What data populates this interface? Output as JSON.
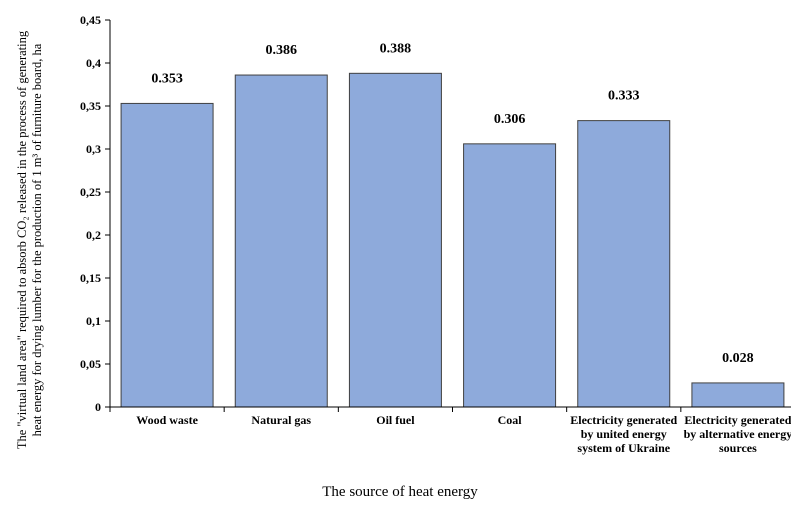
{
  "chart_data": {
    "type": "bar",
    "categories": [
      "Wood waste",
      "Natural gas",
      "Oil fuel",
      "Coal",
      "Electricity generated by united energy system of Ukraine",
      "Electricity generated by alternative energy sources"
    ],
    "values": [
      0.353,
      0.386,
      0.388,
      0.306,
      0.333,
      0.028
    ],
    "value_labels": [
      "0.353",
      "0.386",
      "0.388",
      "0.306",
      "0.333",
      "0.028"
    ],
    "xlabel": "The source of heat energy",
    "ylabel": "The \"virtual land area\" required to absorb CO₂ released in the process of generating heat energy for drying lumber for the production of 1 m³ of furniture board, ha",
    "ylim": [
      0,
      0.45
    ],
    "yticks": [
      "0",
      "0,05",
      "0,1",
      "0,15",
      "0,2",
      "0,25",
      "0,3",
      "0,35",
      "0,4",
      "0,45"
    ],
    "grid": false,
    "legend": "none",
    "bar_color": "#8eaadb",
    "bar_edge_color": "#404040"
  }
}
